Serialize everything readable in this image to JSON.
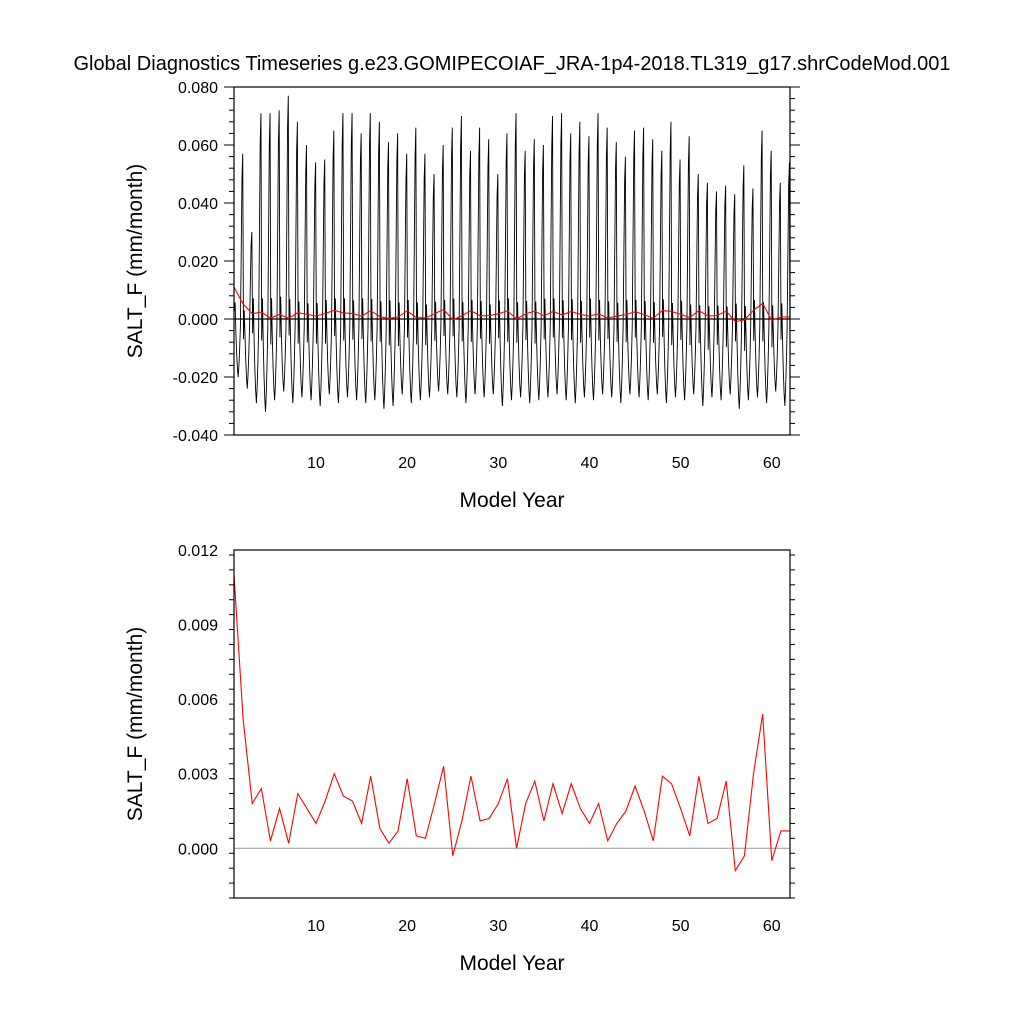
{
  "title": "Global Diagnostics Timeseries g.e23.GOMIPECOIAF_JRA-1p4-2018.TL319_g17.shrCodeMod.001",
  "colors": {
    "monthly": "#000000",
    "annual": "#ff0000",
    "zero_line_top": "#000000",
    "zero_line_bottom": "#999999"
  },
  "chart_data": [
    {
      "type": "line",
      "xlabel": "Model Year",
      "ylabel": "SALT_F (mm/month)",
      "xlim": [
        1,
        62
      ],
      "ylim": [
        -0.04,
        0.08
      ],
      "x_ticks": [
        "10",
        "20",
        "30",
        "40",
        "50",
        "60"
      ],
      "y_ticks": [
        "-0.040",
        "-0.020",
        "0.000",
        "0.020",
        "0.040",
        "0.060",
        "0.080"
      ],
      "reference_line_y": 0,
      "series": [
        {
          "description": "monthly values",
          "color": "#000000",
          "x_start": 1.0417,
          "x_step": 0.0833,
          "annual_peaks": [
            0.057,
            0.03,
            0.071,
            0.071,
            0.072,
            0.077,
            0.068,
            0.06,
            0.054,
            0.055,
            0.065,
            0.071,
            0.071,
            0.064,
            0.071,
            0.068,
            0.061,
            0.064,
            0.057,
            0.066,
            0.057,
            0.05,
            0.06,
            0.066,
            0.07,
            0.058,
            0.066,
            0.062,
            0.05,
            0.064,
            0.071,
            0.058,
            0.062,
            0.06,
            0.07,
            0.071,
            0.064,
            0.068,
            0.063,
            0.071,
            0.066,
            0.061,
            0.056,
            0.065,
            0.066,
            0.062,
            0.058,
            0.068,
            0.055,
            0.063,
            0.05,
            0.047,
            0.044,
            0.046,
            0.043,
            0.053,
            0.045,
            0.065,
            0.058,
            0.047,
            0.054
          ],
          "annual_troughs": [
            -0.02,
            -0.024,
            -0.029,
            -0.032,
            -0.028,
            -0.025,
            -0.029,
            -0.027,
            -0.028,
            -0.03,
            -0.026,
            -0.029,
            -0.027,
            -0.028,
            -0.029,
            -0.028,
            -0.031,
            -0.03,
            -0.026,
            -0.029,
            -0.028,
            -0.027,
            -0.025,
            -0.026,
            -0.027,
            -0.029,
            -0.026,
            -0.027,
            -0.026,
            -0.03,
            -0.028,
            -0.027,
            -0.029,
            -0.028,
            -0.027,
            -0.026,
            -0.028,
            -0.029,
            -0.027,
            -0.028,
            -0.026,
            -0.027,
            -0.029,
            -0.026,
            -0.027,
            -0.028,
            -0.026,
            -0.029,
            -0.027,
            -0.028,
            -0.026,
            -0.03,
            -0.027,
            -0.028,
            -0.026,
            -0.031,
            -0.028,
            -0.027,
            -0.029,
            -0.025,
            -0.03
          ]
        },
        {
          "description": "annual mean",
          "color": "#ff0000",
          "x": [
            1,
            2,
            3,
            4,
            5,
            6,
            7,
            8,
            9,
            10,
            11,
            12,
            13,
            14,
            15,
            16,
            17,
            18,
            19,
            20,
            21,
            22,
            23,
            24,
            25,
            26,
            27,
            28,
            29,
            30,
            31,
            32,
            33,
            34,
            35,
            36,
            37,
            38,
            39,
            40,
            41,
            42,
            43,
            44,
            45,
            46,
            47,
            48,
            49,
            50,
            51,
            52,
            53,
            54,
            55,
            56,
            57,
            58,
            59,
            60,
            61,
            62
          ],
          "values": [
            0.011,
            0.0052,
            0.0018,
            0.0024,
            0.0003,
            0.0016,
            0.0002,
            0.0022,
            0.0016,
            0.001,
            0.0019,
            0.003,
            0.0021,
            0.0019,
            0.001,
            0.0029,
            0.0008,
            0.0002,
            0.0007,
            0.0028,
            0.0005,
            0.0004,
            0.0018,
            0.0033,
            -0.0003,
            0.0011,
            0.0029,
            0.0011,
            0.0012,
            0.0018,
            0.0028,
            0.0,
            0.0018,
            0.0027,
            0.0011,
            0.0026,
            0.0014,
            0.0026,
            0.0016,
            0.001,
            0.0018,
            0.0003,
            0.001,
            0.0015,
            0.0025,
            0.0015,
            0.0003,
            0.0029,
            0.0026,
            0.0016,
            0.0005,
            0.0029,
            0.001,
            0.0012,
            0.0027,
            -0.0009,
            -0.0003,
            0.003,
            0.0054,
            -0.0005,
            0.0007,
            0.0007
          ]
        }
      ]
    },
    {
      "type": "line",
      "xlabel": "Model Year",
      "ylabel": "SALT_F (mm/month)",
      "xlim": [
        1,
        62
      ],
      "ylim": [
        -0.002,
        0.012
      ],
      "x_ticks": [
        "10",
        "20",
        "30",
        "40",
        "50",
        "60"
      ],
      "y_ticks": [
        "0.000",
        "0.003",
        "0.006",
        "0.009",
        "0.012"
      ],
      "reference_line_y": 0,
      "series": [
        {
          "description": "annual mean",
          "color": "#ff0000",
          "x": [
            1,
            2,
            3,
            4,
            5,
            6,
            7,
            8,
            9,
            10,
            11,
            12,
            13,
            14,
            15,
            16,
            17,
            18,
            19,
            20,
            21,
            22,
            23,
            24,
            25,
            26,
            27,
            28,
            29,
            30,
            31,
            32,
            33,
            34,
            35,
            36,
            37,
            38,
            39,
            40,
            41,
            42,
            43,
            44,
            45,
            46,
            47,
            48,
            49,
            50,
            51,
            52,
            53,
            54,
            55,
            56,
            57,
            58,
            59,
            60,
            61,
            62
          ],
          "values": [
            0.011,
            0.0052,
            0.0018,
            0.0024,
            0.0003,
            0.0016,
            0.0002,
            0.0022,
            0.0016,
            0.001,
            0.0019,
            0.003,
            0.0021,
            0.0019,
            0.001,
            0.0029,
            0.0008,
            0.0002,
            0.0007,
            0.0028,
            0.0005,
            0.0004,
            0.0018,
            0.0033,
            -0.0003,
            0.0011,
            0.0029,
            0.0011,
            0.0012,
            0.0018,
            0.0028,
            0.0,
            0.0018,
            0.0027,
            0.0011,
            0.0026,
            0.0014,
            0.0026,
            0.0016,
            0.001,
            0.0018,
            0.0003,
            0.001,
            0.0015,
            0.0025,
            0.0015,
            0.0003,
            0.0029,
            0.0026,
            0.0016,
            0.0005,
            0.0029,
            0.001,
            0.0012,
            0.0027,
            -0.0009,
            -0.0003,
            0.003,
            0.0054,
            -0.0005,
            0.0007,
            0.0007
          ]
        }
      ]
    }
  ]
}
